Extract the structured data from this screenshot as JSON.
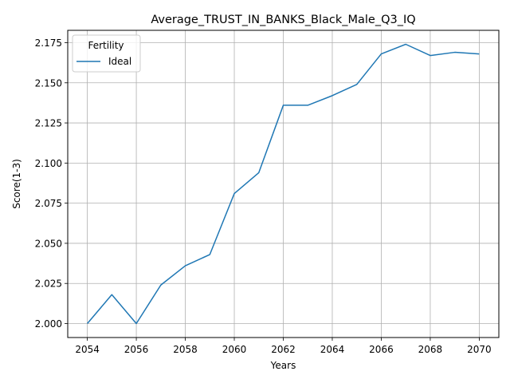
{
  "chart_data": {
    "type": "line",
    "title": "Average_TRUST_IN_BANKS_Black_Male_Q3_IQ",
    "xlabel": "Years",
    "ylabel": "Score(1-3)",
    "x": [
      2054,
      2055,
      2056,
      2057,
      2058,
      2059,
      2060,
      2061,
      2062,
      2063,
      2064,
      2065,
      2066,
      2067,
      2068,
      2069,
      2070
    ],
    "series": [
      {
        "name": "Ideal",
        "color": "#1f77b4",
        "values": [
          2.0,
          2.018,
          2.0,
          2.024,
          2.036,
          2.043,
          2.081,
          2.094,
          2.136,
          2.136,
          2.142,
          2.149,
          2.168,
          2.174,
          2.167,
          2.169,
          2.168
        ]
      }
    ],
    "xlim": [
      2053.2,
      2070.8
    ],
    "ylim": [
      1.9913,
      2.1827
    ],
    "xticks": [
      "2054",
      "2056",
      "2058",
      "2060",
      "2062",
      "2064",
      "2066",
      "2068",
      "2070"
    ],
    "yticks": [
      "2.000",
      "2.025",
      "2.050",
      "2.075",
      "2.100",
      "2.125",
      "2.150",
      "2.175"
    ],
    "grid": true,
    "legend": {
      "title": "Fertility",
      "position": "top-left"
    }
  }
}
